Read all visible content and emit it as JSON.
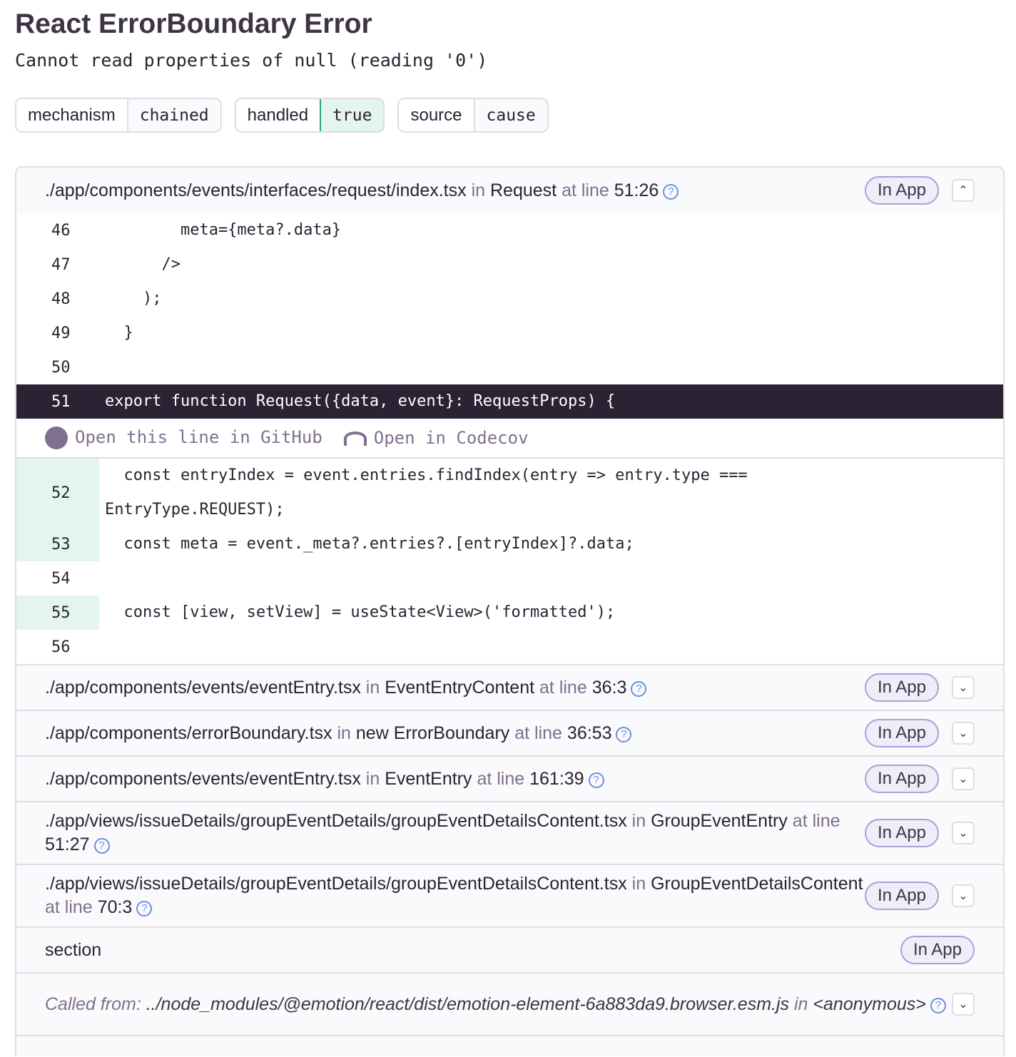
{
  "title": "React ErrorBoundary Error",
  "message": "Cannot read properties of null (reading '0')",
  "tags": [
    {
      "key": "mechanism",
      "value": "chained",
      "highlight": false
    },
    {
      "key": "handled",
      "value": "true",
      "highlight": true
    },
    {
      "key": "source",
      "value": "cause",
      "highlight": false
    }
  ],
  "labels": {
    "in": "in",
    "at_line": "at line",
    "in_app": "In App",
    "help": "?",
    "github": "Open this line in GitHub",
    "codecov": "Open in Codecov",
    "called_from": "Called from:"
  },
  "frames": [
    {
      "file": "./app/components/events/interfaces/request/index.tsx",
      "func": "Request",
      "line": "51:26"
    },
    {
      "file": "./app/components/events/eventEntry.tsx",
      "func": "EventEntryContent",
      "line": "36:3"
    },
    {
      "file": "./app/components/errorBoundary.tsx",
      "func": "new ErrorBoundary",
      "line": "36:53"
    },
    {
      "file": "./app/components/events/eventEntry.tsx",
      "func": "EventEntry",
      "line": "161:39"
    },
    {
      "file": "./app/views/issueDetails/groupEventDetails/groupEventDetailsContent.tsx",
      "func": "GroupEventEntry",
      "line": "51:27"
    },
    {
      "file": "./app/views/issueDetails/groupEventDetails/groupEventDetailsContent.tsx",
      "func": "GroupEventDetailsContent",
      "line": "70:3"
    },
    {
      "file": "section"
    },
    {
      "file": "../node_modules/@emotion/react/dist/emotion-element-6a883da9.browser.esm.js",
      "func": "<anonymous>"
    }
  ],
  "code": [
    {
      "n": "46",
      "t": "        meta={meta?.data}"
    },
    {
      "n": "47",
      "t": "      />"
    },
    {
      "n": "48",
      "t": "    );"
    },
    {
      "n": "49",
      "t": "  }"
    },
    {
      "n": "50",
      "t": ""
    },
    {
      "n": "51",
      "t": "export function Request({data, event}: RequestProps) {"
    },
    {
      "n": "52",
      "t": "  const entryIndex = event.entries.findIndex(entry => entry.type ===\nEntryType.REQUEST);"
    },
    {
      "n": "53",
      "t": "  const meta = event._meta?.entries?.[entryIndex]?.data;"
    },
    {
      "n": "54",
      "t": ""
    },
    {
      "n": "55",
      "t": "  const [view, setView] = useState<View>('formatted');"
    },
    {
      "n": "56",
      "t": ""
    }
  ]
}
